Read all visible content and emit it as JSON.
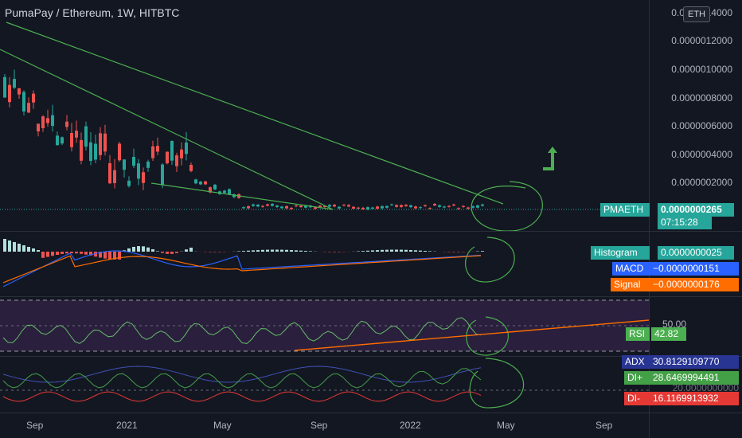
{
  "header": {
    "title": "PumaPay / Ethereum, 1W, HITBTC",
    "currency": "ETH"
  },
  "price_axis": {
    "labels": [
      "0.0000014000",
      "0.0000012000",
      "0.0000010000",
      "0.0000008000",
      "0.0000006000",
      "0.0000004000",
      "0.0000002000"
    ]
  },
  "price_tag": {
    "symbol": "PMAETH",
    "value": "0.0000000265",
    "countdown": "07:15:28"
  },
  "macd": {
    "histogram_label": "Histogram",
    "histogram_value": "0.0000000025",
    "macd_label": "MACD",
    "macd_value": "−0.0000000151",
    "signal_label": "Signal",
    "signal_value": "−0.0000000176"
  },
  "rsi": {
    "label": "RSI",
    "value": "42.82",
    "level": "50.00"
  },
  "dmi": {
    "adx_label": "ADX",
    "adx_value": "30.8129109770",
    "diplus_label": "DI+",
    "diplus_value": "28.6469994491",
    "diminus_label": "DI-",
    "diminus_value": "16.1169913932",
    "partial_axis": "20.0000000000"
  },
  "time_axis": [
    "Sep",
    "2021",
    "May",
    "Sep",
    "2022",
    "May",
    "Sep"
  ],
  "colors": {
    "up": "#26a69a",
    "down": "#ef5350",
    "trendline": "#4caf50",
    "macd": "#2962ff",
    "signal": "#ff6d00",
    "rsi_band": "#7e57c2",
    "background": "#131722"
  },
  "chart_data": {
    "type": "candlestick",
    "title": "PumaPay / Ethereum, 1W, HITBTC",
    "ylim": [
      0,
      1.4e-06
    ],
    "last_price": 2.65e-08
  }
}
